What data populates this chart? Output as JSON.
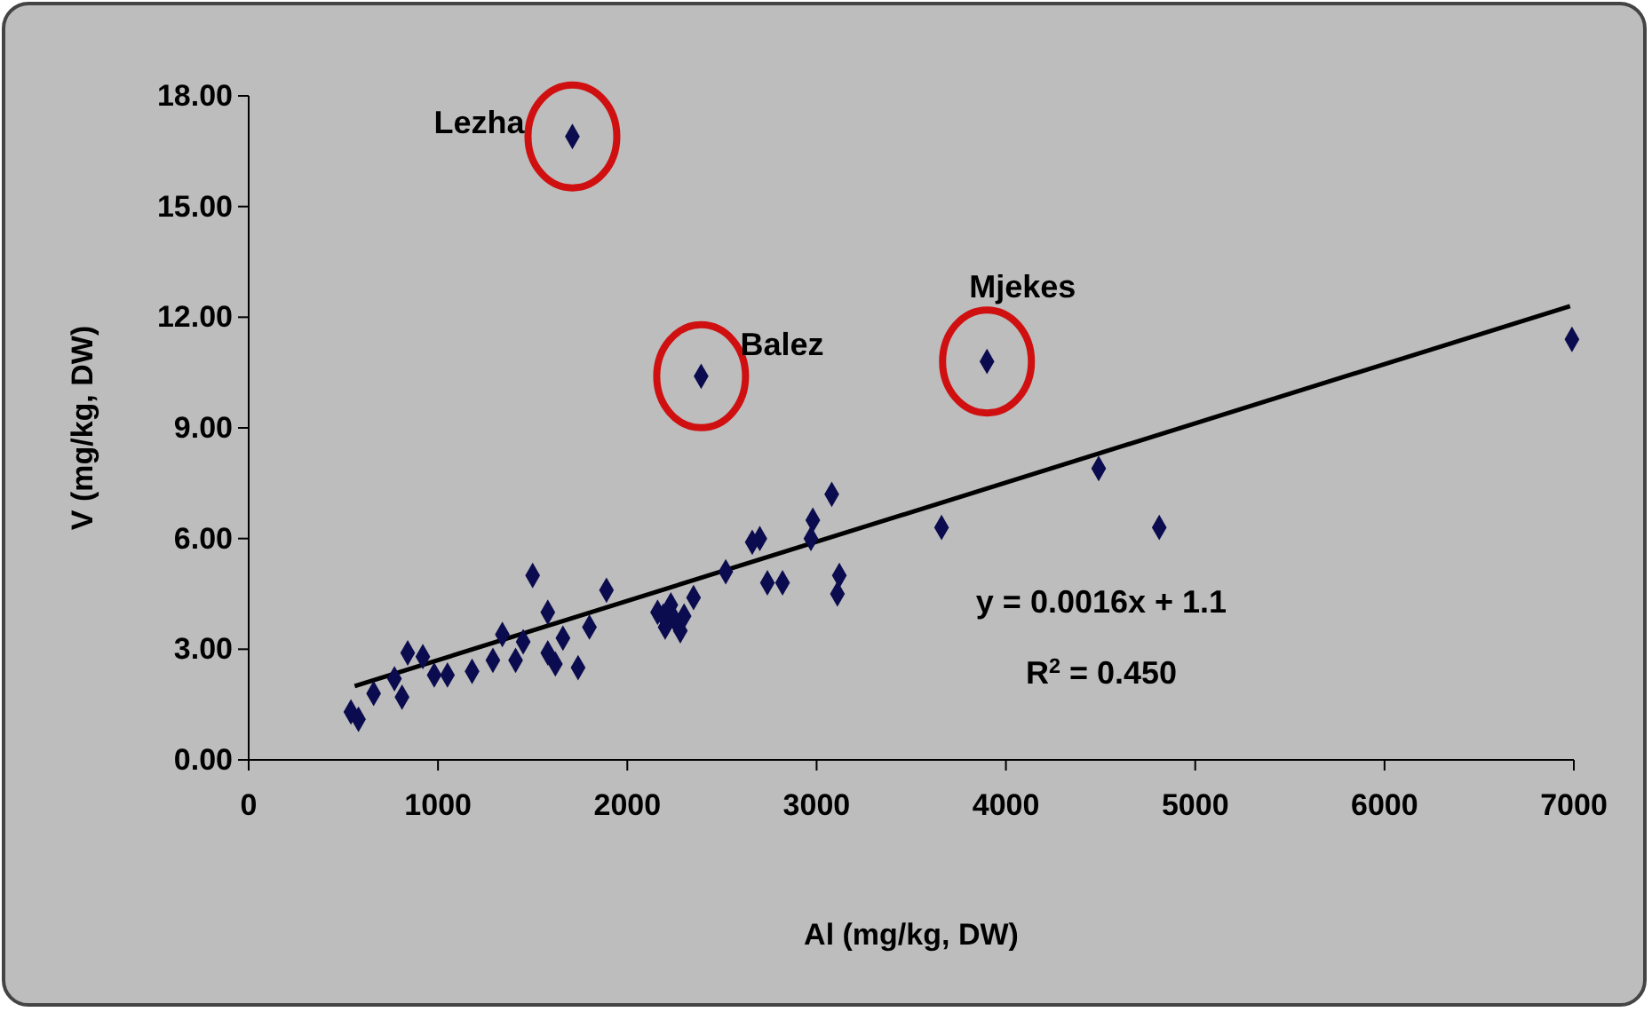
{
  "chart_data": {
    "type": "scatter",
    "xlabel": "Al (mg/kg, DW)",
    "ylabel": "V (mg/kg, DW)",
    "xlim": [
      0,
      7000
    ],
    "xticks": [
      0,
      1000,
      2000,
      3000,
      4000,
      5000,
      6000,
      7000
    ],
    "ylim": [
      0,
      18
    ],
    "yticks": [
      {
        "value": 0,
        "label": "0.00"
      },
      {
        "value": 3,
        "label": "3.00"
      },
      {
        "value": 6,
        "label": "6.00"
      },
      {
        "value": 9,
        "label": "9.00"
      },
      {
        "value": 12,
        "label": "12.00"
      },
      {
        "value": 15,
        "label": "15.00"
      },
      {
        "value": 18,
        "label": "18.00"
      }
    ],
    "grid": false,
    "marker": "diamond",
    "series": [
      {
        "color": "#0b0b4f",
        "x": [
          1710,
          2390,
          3900,
          6990,
          4490,
          4810,
          3660,
          3080,
          2980,
          2970,
          2700,
          2660,
          2520,
          2350,
          2740,
          2820,
          3120,
          3110,
          2160,
          2200,
          2230,
          2250,
          2280,
          2300,
          2190,
          1500,
          1890,
          1580,
          1800,
          1340,
          840,
          920,
          540,
          580,
          660,
          810,
          770,
          980,
          1050,
          1180,
          1290,
          1410,
          1450,
          1580,
          1620,
          1740,
          1660
        ],
        "values": [
          16.9,
          10.4,
          10.8,
          11.4,
          7.9,
          6.3,
          6.3,
          7.2,
          6.5,
          6.0,
          6.0,
          5.9,
          5.1,
          4.4,
          4.8,
          4.8,
          5.0,
          4.5,
          4.0,
          3.6,
          4.2,
          3.8,
          3.5,
          3.9,
          3.9,
          5.0,
          4.6,
          4.0,
          3.6,
          3.4,
          2.9,
          2.8,
          1.3,
          1.1,
          1.8,
          1.7,
          2.2,
          2.3,
          2.3,
          2.4,
          2.7,
          2.7,
          3.2,
          2.9,
          2.6,
          2.5,
          3.3
        ]
      },
      {
        "type": "line",
        "color": "#000000",
        "marker": "none",
        "x": [
          560,
          6980
        ],
        "values": [
          2.0,
          12.3
        ]
      }
    ],
    "annotations": [
      {
        "text": "Lezha",
        "x": 1710,
        "y": 16.9
      },
      {
        "text": "Balez",
        "x": 2390,
        "y": 10.4
      },
      {
        "text": "Mjekes",
        "x": 3900,
        "y": 10.8
      },
      "y = 0.0016x + 1.1",
      "R$^{2}$ = 0.450"
    ]
  }
}
